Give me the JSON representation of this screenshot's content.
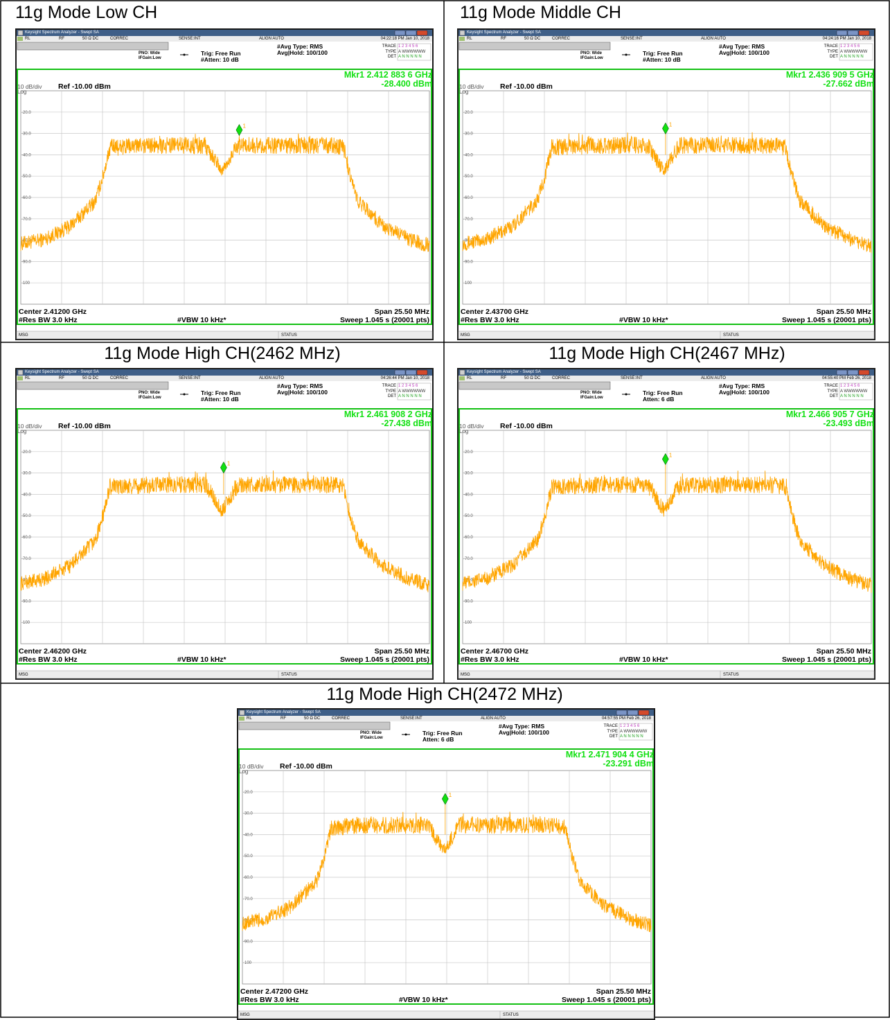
{
  "panels": [
    {
      "title": "11g Mode Low CH",
      "window_title": "Keysight Spectrum Analyzer - Swept SA",
      "tabs": [
        "RL",
        "RF",
        "50 Ω  DC",
        "CORREC",
        "SENSE:INT",
        "ALIGN AUTO"
      ],
      "datetime": "04:22:18 PM Jan 10, 2018",
      "pno": "PNO: Wide",
      "ifgain": "IFGain:Low",
      "trig": "Trig: Free Run",
      "atten": "#Atten: 10 dB",
      "avg_type": "#Avg Type: RMS",
      "avg_hold": "Avg|Hold: 100/100",
      "trace_labels": [
        "TRACE",
        "TYPE",
        "DET"
      ],
      "trace_values": [
        "1 2 3 4 5 6",
        "A WWWWWW",
        "A N N N N N"
      ],
      "marker_freq": "Mkr1 2.412 883 6 GHz",
      "marker_level": "-28.400 dBm",
      "scale": "10 dB/div",
      "scale_type": "Log",
      "ref": "Ref -10.00 dBm",
      "center": "Center 2.41200 GHz",
      "span": "Span 25.50 MHz",
      "res_bw": "#Res BW 3.0 kHz",
      "vbw": "#VBW 10 kHz*",
      "sweep": "Sweep  1.045 s (20001 pts)",
      "msg": "MSG",
      "status": "STATUS"
    },
    {
      "title": "11g Mode Middle CH",
      "window_title": "Keysight Spectrum Analyzer - Swept SA",
      "tabs": [
        "RL",
        "RF",
        "50 Ω  DC",
        "CORREC",
        "SENSE:INT",
        "ALIGN AUTO"
      ],
      "datetime": "04:24:16 PM Jan 10, 2018",
      "pno": "PNO: Wide",
      "ifgain": "IFGain:Low",
      "trig": "Trig: Free Run",
      "atten": "#Atten: 10 dB",
      "avg_type": "#Avg Type: RMS",
      "avg_hold": "Avg|Hold: 100/100",
      "trace_labels": [
        "TRACE",
        "TYPE",
        "DET"
      ],
      "trace_values": [
        "1 2 3 4 5 6",
        "A WWWWWW",
        "A N N N N N"
      ],
      "marker_freq": "Mkr1 2.436 909 5 GHz",
      "marker_level": "-27.662 dBm",
      "scale": "10 dB/div",
      "scale_type": "Log",
      "ref": "Ref -10.00 dBm",
      "center": "Center 2.43700 GHz",
      "span": "Span 25.50 MHz",
      "res_bw": "#Res BW 3.0 kHz",
      "vbw": "#VBW 10 kHz*",
      "sweep": "Sweep  1.045 s (20001 pts)",
      "msg": "MSG",
      "status": "STATUS"
    },
    {
      "title": "11g Mode High CH(2462 MHz)",
      "window_title": "Keysight Spectrum Analyzer - Swept SA",
      "tabs": [
        "RL",
        "RF",
        "50 Ω  DC",
        "CORREC",
        "SENSE:INT",
        "ALIGN AUTO"
      ],
      "datetime": "04:26:44 PM Jan 10, 2018",
      "pno": "PNO: Wide",
      "ifgain": "IFGain:Low",
      "trig": "Trig: Free Run",
      "atten": "#Atten: 10 dB",
      "avg_type": "#Avg Type: RMS",
      "avg_hold": "Avg|Hold: 100/100",
      "trace_labels": [
        "TRACE",
        "TYPE",
        "DET"
      ],
      "trace_values": [
        "1 2 3 4 5 6",
        "A WWWWWW",
        "A N N N N N"
      ],
      "marker_freq": "Mkr1 2.461 908 2 GHz",
      "marker_level": "-27.438 dBm",
      "scale": "10 dB/div",
      "scale_type": "Log",
      "ref": "Ref -10.00 dBm",
      "center": "Center 2.46200 GHz",
      "span": "Span 25.50 MHz",
      "res_bw": "#Res BW 3.0 kHz",
      "vbw": "#VBW 10 kHz*",
      "sweep": "Sweep  1.045 s (20001 pts)",
      "msg": "MSG",
      "status": "STATUS"
    },
    {
      "title": "11g Mode High CH(2467 MHz)",
      "window_title": "Keysight Spectrum Analyzer - Swept SA",
      "tabs": [
        "RL",
        "RF",
        "50 Ω  DC",
        "CORREC",
        "SENSE:INT",
        "ALIGN AUTO"
      ],
      "datetime": "04:55:40 PM Feb 26, 2018",
      "pno": "PNO: Wide",
      "ifgain": "IFGain:Low",
      "trig": "Trig: Free Run",
      "atten": "Atten: 6 dB",
      "avg_type": "#Avg Type: RMS",
      "avg_hold": "Avg|Hold: 100/100",
      "trace_labels": [
        "TRACE",
        "TYPE",
        "DET"
      ],
      "trace_values": [
        "1 2 3 4 5 6",
        "A WWWWWW",
        "A N N N N N"
      ],
      "marker_freq": "Mkr1 2.466 905 7 GHz",
      "marker_level": "-23.493 dBm",
      "scale": "10 dB/div",
      "scale_type": "Log",
      "ref": "Ref -10.00 dBm",
      "center": "Center 2.46700 GHz",
      "span": "Span 25.50 MHz",
      "res_bw": "#Res BW 3.0 kHz",
      "vbw": "#VBW 10 kHz*",
      "sweep": "Sweep  1.045 s (20001 pts)",
      "msg": "MSG",
      "status": "STATUS"
    },
    {
      "title": "11g Mode High CH(2472 MHz)",
      "window_title": "Keysight Spectrum Analyzer - Swept SA",
      "tabs": [
        "RL",
        "RF",
        "50 Ω  DC",
        "CORREC",
        "SENSE:INT",
        "ALIGN AUTO"
      ],
      "datetime": "04:57:55 PM Feb 26, 2018",
      "pno": "PNO: Wide",
      "ifgain": "IFGain:Low",
      "trig": "Trig: Free Run",
      "atten": "Atten: 6 dB",
      "avg_type": "#Avg Type: RMS",
      "avg_hold": "Avg|Hold: 100/100",
      "trace_labels": [
        "TRACE",
        "TYPE",
        "DET"
      ],
      "trace_values": [
        "1 2 3 4 5 6",
        "A WWWWWW",
        "A N N N N N"
      ],
      "marker_freq": "Mkr1 2.471 904 4 GHz",
      "marker_level": "-23.291 dBm",
      "scale": "10 dB/div",
      "scale_type": "Log",
      "ref": "Ref -10.00 dBm",
      "center": "Center 2.47200 GHz",
      "span": "Span 25.50 MHz",
      "res_bw": "#Res BW 3.0 kHz",
      "vbw": "#VBW 10 kHz*",
      "sweep": "Sweep  1.045 s (20001 pts)",
      "msg": "MSG",
      "status": "STATUS"
    }
  ],
  "colors": {
    "trace": "#ffa500",
    "marker": "#12e012",
    "grid": "#c8c8c8",
    "frame": "#12c012"
  },
  "chart_data": [
    {
      "type": "line",
      "x_center_ghz": 2.412,
      "span_mhz": 25.5,
      "ylim": [
        -110,
        -10
      ],
      "yticks": [
        "-20.0",
        "-30.0",
        "-40.0",
        "-50.0",
        "-60.0",
        "-70.0",
        "-80.0",
        "-90.0",
        "-100"
      ],
      "marker": {
        "x_ghz": 2.4128836,
        "y_dbm": -28.4
      },
      "series": [
        {
          "values": [
            [
              2.39925,
              -82
            ],
            [
              2.4007,
              -80
            ],
            [
              2.4023,
              -74
            ],
            [
              2.4039,
              -62
            ],
            [
              2.4044,
              -50
            ],
            [
              2.4048,
              -37
            ],
            [
              2.4078,
              -36
            ],
            [
              2.4108,
              -36
            ],
            [
              2.4118,
              -48
            ],
            [
              2.4128,
              -36
            ],
            [
              2.4158,
              -36
            ],
            [
              2.4188,
              -36
            ],
            [
              2.4194,
              -37
            ],
            [
              2.4198,
              -50
            ],
            [
              2.4203,
              -62
            ],
            [
              2.4219,
              -74
            ],
            [
              2.4235,
              -80
            ],
            [
              2.42475,
              -83
            ]
          ]
        }
      ],
      "grid": true
    },
    {
      "type": "line",
      "x_center_ghz": 2.437,
      "span_mhz": 25.5,
      "ylim": [
        -110,
        -10
      ],
      "yticks": [
        "-20.0",
        "-30.0",
        "-40.0",
        "-50.0",
        "-60.0",
        "-70.0",
        "-80.0",
        "-90.0",
        "-100"
      ],
      "marker": {
        "x_ghz": 2.4369095,
        "y_dbm": -27.662
      },
      "series": [
        {
          "values": [
            [
              2.42425,
              -82
            ],
            [
              2.4257,
              -80
            ],
            [
              2.4273,
              -74
            ],
            [
              2.4289,
              -62
            ],
            [
              2.4294,
              -50
            ],
            [
              2.4298,
              -37
            ],
            [
              2.4328,
              -36
            ],
            [
              2.4358,
              -36
            ],
            [
              2.4368,
              -48
            ],
            [
              2.4378,
              -36
            ],
            [
              2.4408,
              -36
            ],
            [
              2.4438,
              -36
            ],
            [
              2.4444,
              -37
            ],
            [
              2.4448,
              -50
            ],
            [
              2.4453,
              -62
            ],
            [
              2.4469,
              -74
            ],
            [
              2.4485,
              -80
            ],
            [
              2.44975,
              -83
            ]
          ]
        }
      ],
      "grid": true
    },
    {
      "type": "line",
      "x_center_ghz": 2.462,
      "span_mhz": 25.5,
      "ylim": [
        -110,
        -10
      ],
      "yticks": [
        "-20.0",
        "-30.0",
        "-40.0",
        "-50.0",
        "-60.0",
        "-70.0",
        "-80.0",
        "-90.0",
        "-100"
      ],
      "marker": {
        "x_ghz": 2.4619082,
        "y_dbm": -27.438
      },
      "series": [
        {
          "values": [
            [
              2.44925,
              -82
            ],
            [
              2.4507,
              -80
            ],
            [
              2.4523,
              -74
            ],
            [
              2.4539,
              -62
            ],
            [
              2.4544,
              -50
            ],
            [
              2.4548,
              -37
            ],
            [
              2.4578,
              -36
            ],
            [
              2.4608,
              -36
            ],
            [
              2.4618,
              -48
            ],
            [
              2.4628,
              -36
            ],
            [
              2.4658,
              -36
            ],
            [
              2.4688,
              -36
            ],
            [
              2.4694,
              -37
            ],
            [
              2.4698,
              -50
            ],
            [
              2.4703,
              -62
            ],
            [
              2.4719,
              -74
            ],
            [
              2.4735,
              -80
            ],
            [
              2.47475,
              -83
            ]
          ]
        }
      ],
      "grid": true
    },
    {
      "type": "line",
      "x_center_ghz": 2.467,
      "span_mhz": 25.5,
      "ylim": [
        -110,
        -10
      ],
      "yticks": [
        "-20.0",
        "-30.0",
        "-40.0",
        "-50.0",
        "-60.0",
        "-70.0",
        "-80.0",
        "-90.0",
        "-100"
      ],
      "marker": {
        "x_ghz": 2.4669057,
        "y_dbm": -23.493
      },
      "series": [
        {
          "values": [
            [
              2.45425,
              -82
            ],
            [
              2.4557,
              -80
            ],
            [
              2.4573,
              -74
            ],
            [
              2.4589,
              -62
            ],
            [
              2.4594,
              -50
            ],
            [
              2.4598,
              -37
            ],
            [
              2.4628,
              -36
            ],
            [
              2.4658,
              -36
            ],
            [
              2.4668,
              -48
            ],
            [
              2.4678,
              -36
            ],
            [
              2.4708,
              -36
            ],
            [
              2.4738,
              -36
            ],
            [
              2.4744,
              -37
            ],
            [
              2.4748,
              -50
            ],
            [
              2.4753,
              -62
            ],
            [
              2.4769,
              -74
            ],
            [
              2.4785,
              -80
            ],
            [
              2.47975,
              -83
            ]
          ]
        }
      ],
      "grid": true
    },
    {
      "type": "line",
      "x_center_ghz": 2.472,
      "span_mhz": 25.5,
      "ylim": [
        -110,
        -10
      ],
      "yticks": [
        "-20.0",
        "-30.0",
        "-40.0",
        "-50.0",
        "-60.0",
        "-70.0",
        "-80.0",
        "-90.0",
        "-100"
      ],
      "marker": {
        "x_ghz": 2.4719044,
        "y_dbm": -23.291
      },
      "series": [
        {
          "values": [
            [
              2.45925,
              -82
            ],
            [
              2.4607,
              -80
            ],
            [
              2.4623,
              -74
            ],
            [
              2.4639,
              -62
            ],
            [
              2.4644,
              -50
            ],
            [
              2.4648,
              -37
            ],
            [
              2.4678,
              -36
            ],
            [
              2.4708,
              -36
            ],
            [
              2.4718,
              -48
            ],
            [
              2.4728,
              -36
            ],
            [
              2.4758,
              -36
            ],
            [
              2.4788,
              -36
            ],
            [
              2.4794,
              -37
            ],
            [
              2.4798,
              -50
            ],
            [
              2.4803,
              -62
            ],
            [
              2.4819,
              -74
            ],
            [
              2.4835,
              -80
            ],
            [
              2.48475,
              -83
            ]
          ]
        }
      ],
      "grid": true
    }
  ]
}
